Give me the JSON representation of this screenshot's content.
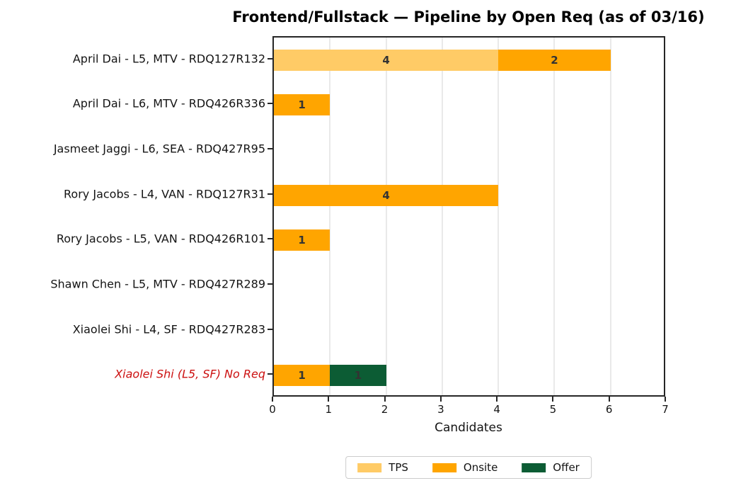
{
  "chart_data": {
    "type": "bar",
    "orientation": "horizontal",
    "stacked": true,
    "title": "Frontend/Fullstack — Pipeline by Open Req (as of 03/16)",
    "xlabel": "Candidates",
    "ylabel": "",
    "xlim": [
      0,
      7
    ],
    "xticks": [
      0,
      1,
      2,
      3,
      4,
      5,
      6,
      7
    ],
    "grid": "vertical",
    "legend_position": "bottom-center",
    "categories": [
      "April Dai - L5, MTV - RDQ127R132",
      "April Dai - L6, MTV - RDQ426R336",
      "Jasmeet Jaggi - L6, SEA - RDQ427R95",
      "Rory Jacobs - L4, VAN - RDQ127R31",
      "Rory Jacobs - L5, VAN - RDQ426R101",
      "Shawn Chen - L5, MTV - RDQ427R289",
      "Xiaolei Shi - L4, SF - RDQ427R283",
      "Xiaolei Shi (L5, SF) No Req"
    ],
    "highlighted_category_index": 7,
    "highlight_color": "#CC1111",
    "default_label_color": "#141414",
    "bar_value_label_color": "#333333",
    "series": [
      {
        "name": "TPS",
        "color": "#FFCB66",
        "values": [
          4,
          0,
          0,
          0,
          0,
          0,
          0,
          0
        ]
      },
      {
        "name": "Onsite",
        "color": "#FFA500",
        "values": [
          2,
          1,
          0,
          4,
          1,
          0,
          0,
          1
        ]
      },
      {
        "name": "Offer",
        "color": "#0C5C34",
        "values": [
          0,
          0,
          0,
          0,
          0,
          0,
          0,
          1
        ]
      }
    ]
  }
}
